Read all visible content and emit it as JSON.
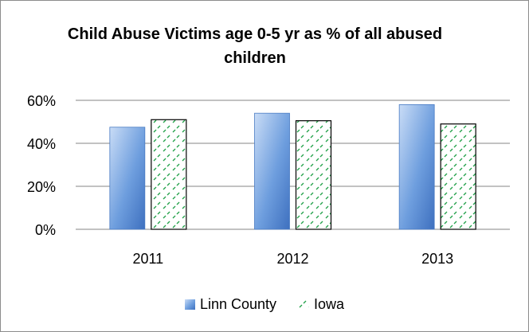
{
  "chart_data": {
    "type": "bar",
    "title": "Child Abuse Victims age 0-5 yr as % of all abused children",
    "categories": [
      "2011",
      "2012",
      "2013"
    ],
    "series": [
      {
        "name": "Linn County",
        "values": [
          47.5,
          54,
          58
        ],
        "color": "#5b8fd6",
        "fill": "blue-gradient"
      },
      {
        "name": "Iowa",
        "values": [
          51,
          50.5,
          49
        ],
        "color": "#22a14a",
        "fill": "green-dashed-pattern"
      }
    ],
    "ylim": [
      0,
      60
    ],
    "yticks": [
      "0%",
      "20%",
      "40%",
      "60%"
    ],
    "ytick_values": [
      0,
      20,
      40,
      60
    ],
    "grid": true,
    "legend": "bottom"
  }
}
